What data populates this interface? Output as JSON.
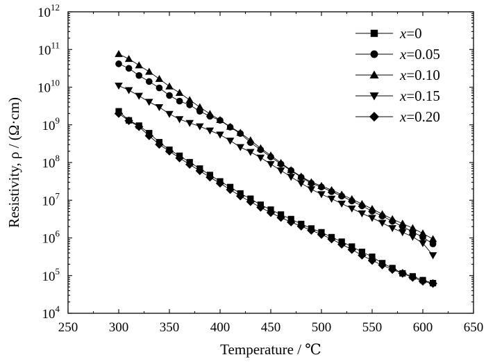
{
  "chart_data": {
    "type": "scatter",
    "title": "",
    "xlabel": "Temperature / ℃",
    "ylabel": "Resistivity, ρ / (Ω·cm)",
    "xlim": [
      250,
      650
    ],
    "xticks": [
      "250",
      "300",
      "350",
      "400",
      "450",
      "500",
      "550",
      "600",
      "650"
    ],
    "ylim_log10": [
      4,
      12
    ],
    "yscale": "log",
    "yticks": [
      {
        "base": "10",
        "exp": "4"
      },
      {
        "base": "10",
        "exp": "5"
      },
      {
        "base": "10",
        "exp": "6"
      },
      {
        "base": "10",
        "exp": "7"
      },
      {
        "base": "10",
        "exp": "8"
      },
      {
        "base": "10",
        "exp": "9"
      },
      {
        "base": "10",
        "exp": "10"
      },
      {
        "base": "10",
        "exp": "11"
      },
      {
        "base": "10",
        "exp": "12"
      }
    ],
    "legend_placement": "top-right",
    "grid": false,
    "x": [
      300,
      310,
      320,
      330,
      340,
      350,
      360,
      370,
      380,
      390,
      400,
      410,
      420,
      430,
      440,
      450,
      460,
      470,
      480,
      490,
      500,
      510,
      520,
      530,
      540,
      550,
      560,
      570,
      580,
      590,
      600,
      610
    ],
    "series": [
      {
        "name": "x=0",
        "label_var": "x",
        "label_val": "=0",
        "marker": "square",
        "log10_values": [
          9.36,
          9.12,
          8.98,
          8.78,
          8.54,
          8.34,
          8.18,
          8.01,
          7.84,
          7.67,
          7.5,
          7.35,
          7.18,
          7.04,
          6.88,
          6.75,
          6.62,
          6.5,
          6.37,
          6.25,
          6.15,
          6.02,
          5.9,
          5.77,
          5.63,
          5.5,
          5.33,
          5.2,
          5.06,
          4.98,
          4.88,
          4.8
        ]
      },
      {
        "name": "x=0.05",
        "label_var": "x",
        "label_val": "=0.05",
        "marker": "circle",
        "log10_values": [
          10.62,
          10.5,
          10.31,
          10.15,
          9.98,
          9.78,
          9.63,
          9.53,
          9.36,
          9.23,
          9.12,
          8.94,
          8.77,
          8.53,
          8.34,
          8.15,
          7.96,
          7.79,
          7.61,
          7.45,
          7.35,
          7.23,
          7.11,
          6.98,
          6.85,
          6.71,
          6.58,
          6.44,
          6.3,
          6.16,
          6.02,
          5.84
        ]
      },
      {
        "name": "x=0.10",
        "label_var": "x",
        "label_val": "=0.10",
        "marker": "triangle-up",
        "log10_values": [
          10.88,
          10.75,
          10.58,
          10.41,
          10.22,
          10.02,
          9.85,
          9.66,
          9.47,
          9.29,
          9.13,
          8.95,
          8.79,
          8.59,
          8.38,
          8.19,
          7.99,
          7.8,
          7.63,
          7.48,
          7.38,
          7.27,
          7.15,
          7.03,
          6.9,
          6.77,
          6.63,
          6.5,
          6.38,
          6.26,
          6.12,
          5.97
        ]
      },
      {
        "name": "x=0.15",
        "label_var": "x",
        "label_val": "=0.15",
        "marker": "triangle-down",
        "log10_values": [
          10.04,
          9.92,
          9.77,
          9.61,
          9.47,
          9.29,
          9.15,
          9.05,
          8.96,
          8.85,
          8.74,
          8.58,
          8.41,
          8.28,
          8.13,
          7.96,
          7.79,
          7.62,
          7.45,
          7.29,
          7.16,
          7.04,
          6.91,
          6.78,
          6.65,
          6.53,
          6.4,
          6.26,
          6.15,
          6.03,
          5.86,
          5.54
        ]
      },
      {
        "name": "x=0.20",
        "label_var": "x",
        "label_val": "=0.20",
        "marker": "diamond",
        "log10_values": [
          9.3,
          9.11,
          8.95,
          8.71,
          8.48,
          8.3,
          8.12,
          7.95,
          7.78,
          7.61,
          7.45,
          7.28,
          7.11,
          6.96,
          6.81,
          6.67,
          6.54,
          6.42,
          6.31,
          6.2,
          6.09,
          5.97,
          5.83,
          5.69,
          5.54,
          5.4,
          5.28,
          5.16,
          5.06,
          4.95,
          4.85,
          4.79
        ]
      }
    ]
  }
}
